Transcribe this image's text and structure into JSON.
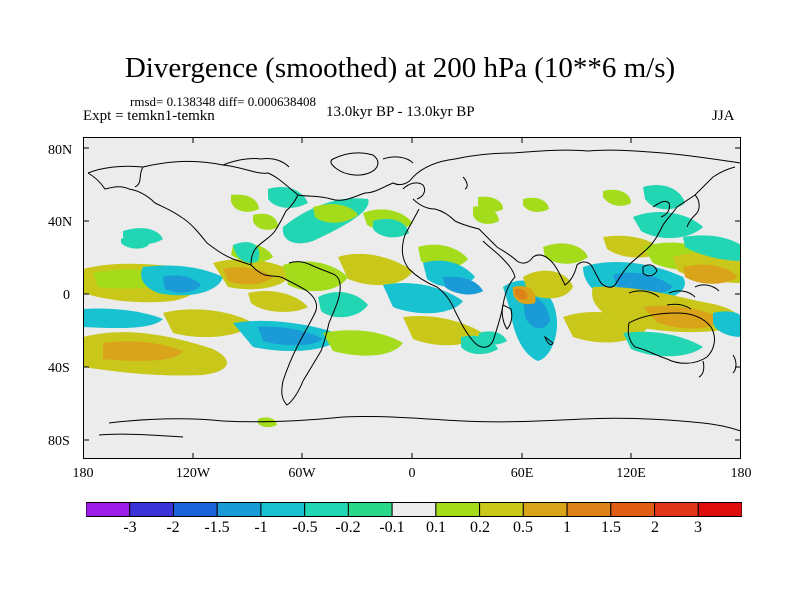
{
  "title": "Divergence (smoothed) at 200 hPa (10**6 m/s)",
  "stats": "rmsd= 0.138348 diff= 0.000638408",
  "experiment": "Expt = temkn1-temkn",
  "period": "13.0kyr BP - 13.0kyr BP",
  "season": "JJA",
  "axes": {
    "lat_labels": [
      "80N",
      "40N",
      "0",
      "40S",
      "80S"
    ],
    "lon_labels": [
      "180",
      "120W",
      "60W",
      "0",
      "60E",
      "120E",
      "180"
    ]
  },
  "colorbar": {
    "labels": [
      "-3",
      "-2",
      "-1.5",
      "-1",
      "-0.5",
      "-0.2",
      "-0.1",
      "0.1",
      "0.2",
      "0.5",
      "1",
      "1.5",
      "2",
      "3"
    ],
    "colors": [
      "#9b1de6",
      "#3b32d8",
      "#1a63d8",
      "#1a9ad6",
      "#18c2d0",
      "#22d6b4",
      "#2ad88a",
      "#ececec",
      "#a4dc1c",
      "#c9c81a",
      "#d9a31a",
      "#dd8218",
      "#e05d14",
      "#e0361a",
      "#e00d0d"
    ]
  },
  "map": {
    "background": "#ececec",
    "legend_colors": {
      "neg_weak": "#22d6b4",
      "neg_mid": "#18c2d0",
      "neg_strong": "#1a9ad6",
      "pos_weak": "#a4dc1c",
      "pos_mid": "#c9c81a",
      "pos_strong": "#d9a31a",
      "pos_peak": "#dd8218"
    }
  }
}
